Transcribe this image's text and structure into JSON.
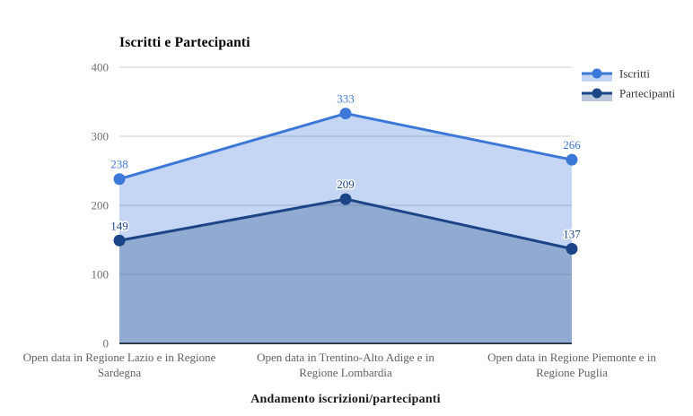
{
  "chart_data": {
    "type": "area",
    "title": "Iscritti e Partecipanti",
    "xlabel": "Andamento iscrizioni/partecipanti",
    "ylabel": "",
    "categories": [
      "Open data in Regione Lazio e in Regione Sardegna",
      "Open data in Trentino-Alto Adige e in Regione Lombardia",
      "Open data in Regione Piemonte e in Regione Puglia"
    ],
    "series": [
      {
        "name": "Iscritti",
        "values": [
          238,
          333,
          266
        ],
        "color": "#3c78d8"
      },
      {
        "name": "Partecipanti",
        "values": [
          149,
          209,
          137
        ],
        "color": "#1c4587"
      }
    ],
    "ylim": [
      0,
      400
    ],
    "yticks": [
      0,
      100,
      200,
      300,
      400
    ],
    "grid": true,
    "area_opacity": 0.3,
    "annotations_shown": true,
    "legend_position": "top-right"
  },
  "colors": {
    "background": "#ffffff",
    "gridline": "#cccccc",
    "baseline": "#333333",
    "tick_label": "#6f6f6f",
    "category_label": "#616161",
    "legend_label": "#333333",
    "title": "#000000",
    "annotation_halo": "#ffffff"
  }
}
